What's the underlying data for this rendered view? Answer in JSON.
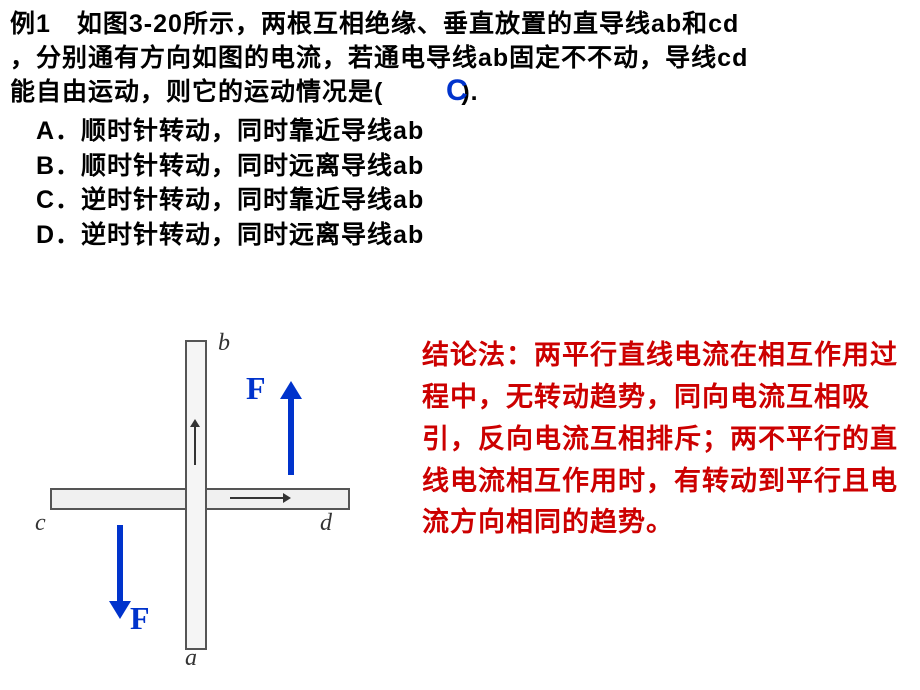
{
  "question": {
    "prefix": "例1",
    "text_line1": "　如图3-20所示，两根互相绝缘、垂直放置的直导线ab和cd",
    "text_line2": "，分别通有方向如图的电流，若通电导线ab固定不不动，导线cd",
    "text_line3": "能自由运动，则它的运动情况是(　　　).",
    "answer": "C"
  },
  "options": {
    "a": "A．顺时针转动，同时靠近导线ab",
    "b": "B．顺时针转动，同时远离导线ab",
    "c": "C．逆时针转动，同时靠近导线ab",
    "d": "D．逆时针转动，同时远离导线ab"
  },
  "diagram": {
    "labels": {
      "a": "a",
      "b": "b",
      "c": "c",
      "d": "d"
    },
    "force_label": "F",
    "colors": {
      "force": "#0033cc",
      "wire_border": "#555555",
      "wire_fill": "#f0f0f0"
    }
  },
  "conclusion": {
    "text": "结论法：两平行直线电流在相互作用过程中，无转动趋势，同向电流互相吸引，反向电流互相排斥；两不平行的直线电流相互作用时，有转动到平行且电流方向相同的趋势。",
    "color": "#cc0000",
    "fontsize": 27
  }
}
